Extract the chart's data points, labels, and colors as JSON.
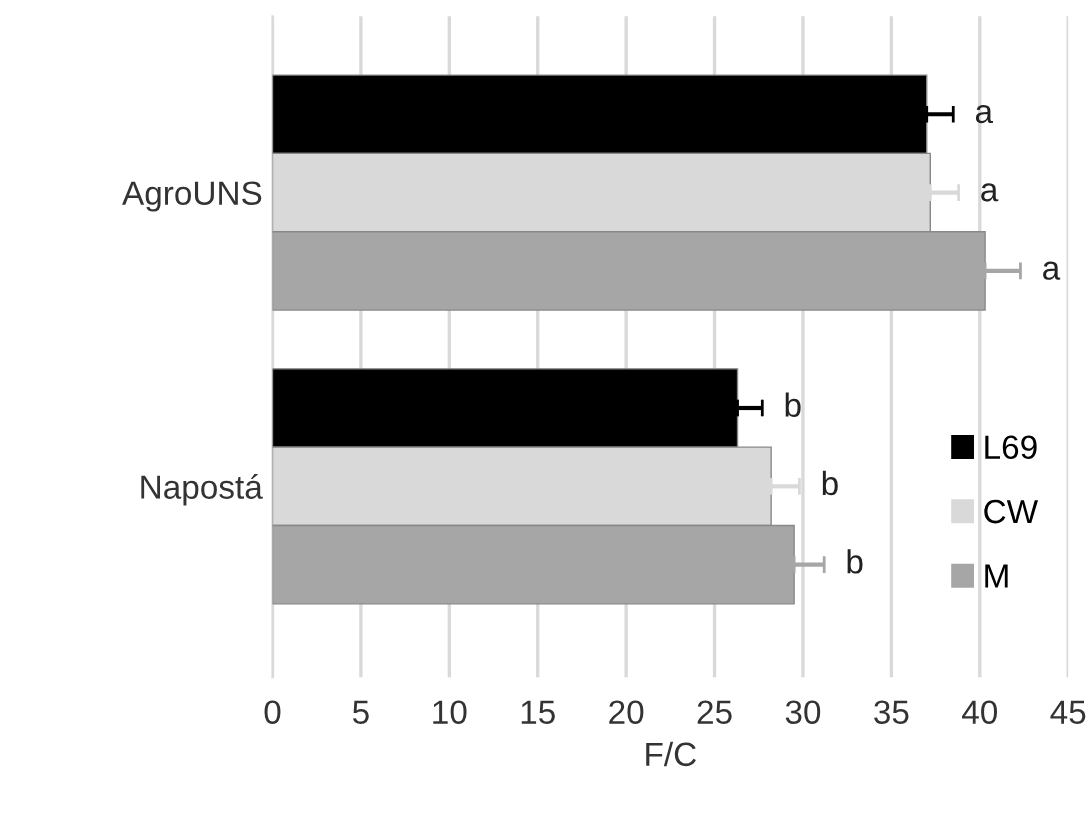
{
  "chart_data": {
    "type": "bar",
    "orientation": "horizontal",
    "xlabel": "F/C",
    "categories": [
      "AgroUNS",
      "Napostá"
    ],
    "series": [
      {
        "name": "L69",
        "color": "#000000",
        "values": [
          37.0,
          26.3
        ],
        "errors": [
          1.5,
          1.4
        ],
        "value_labels": [
          "a",
          "b"
        ]
      },
      {
        "name": "CW",
        "color": "#d9d9d9",
        "values": [
          37.2,
          28.2
        ],
        "errors": [
          1.6,
          1.6
        ],
        "value_labels": [
          "a",
          "b"
        ]
      },
      {
        "name": "M",
        "color": "#a6a6a6",
        "values": [
          40.3,
          29.5
        ],
        "errors": [
          2.0,
          1.7
        ],
        "value_labels": [
          "a",
          "b"
        ]
      }
    ],
    "xlim": [
      0,
      45
    ],
    "xticks": [
      0,
      5,
      10,
      15,
      20,
      25,
      30,
      35,
      40,
      45
    ],
    "grid": "x",
    "legend": "right"
  }
}
